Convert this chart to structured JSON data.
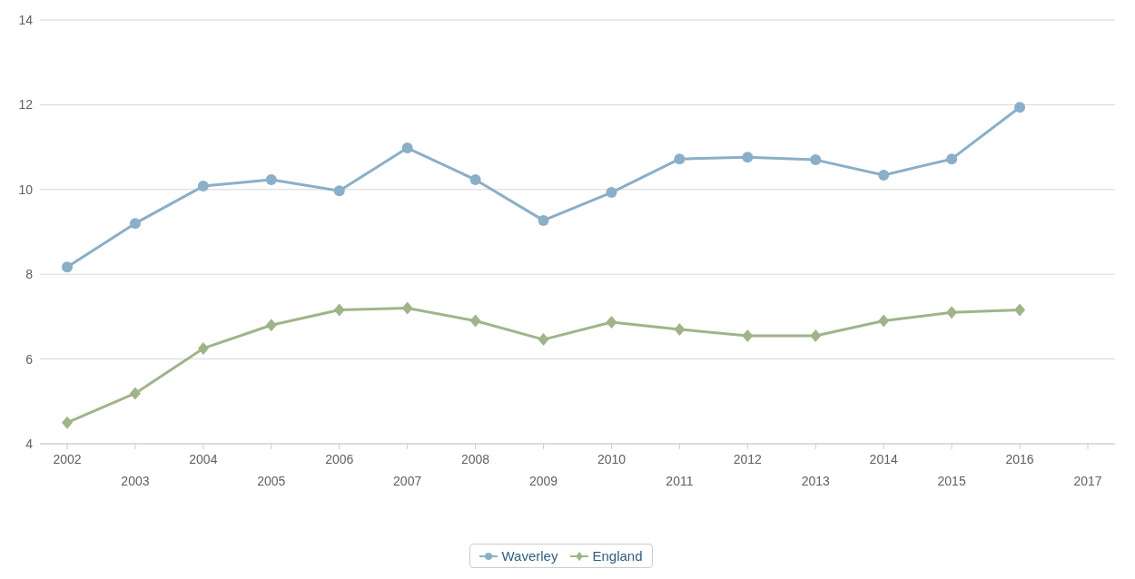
{
  "chart_data": {
    "type": "line",
    "categories": [
      "2002",
      "2003",
      "2004",
      "2005",
      "2006",
      "2007",
      "2008",
      "2009",
      "2010",
      "2011",
      "2012",
      "2013",
      "2014",
      "2015",
      "2016",
      "2017"
    ],
    "series": [
      {
        "name": "Waverley",
        "color": "#8aafc8",
        "marker": "circle",
        "values": [
          8.17,
          9.2,
          10.08,
          10.23,
          9.97,
          10.98,
          10.23,
          9.27,
          9.93,
          10.72,
          10.76,
          10.7,
          10.34,
          10.72,
          11.94,
          null
        ]
      },
      {
        "name": "England",
        "color": "#a0b48a",
        "marker": "diamond",
        "values": [
          4.5,
          5.19,
          6.25,
          6.8,
          7.16,
          7.2,
          6.9,
          6.46,
          6.87,
          6.7,
          6.55,
          6.55,
          6.9,
          7.1,
          7.16,
          null
        ]
      }
    ],
    "ylim": [
      4,
      14
    ],
    "yticks": [
      4,
      6,
      8,
      10,
      12,
      14
    ],
    "grid": "y",
    "legend": "bottom",
    "line_style": "solid"
  }
}
